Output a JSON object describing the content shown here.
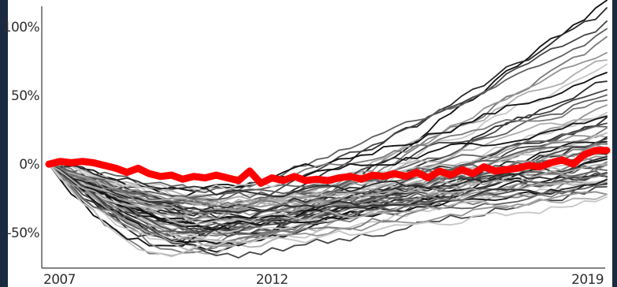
{
  "chart_data": {
    "type": "line",
    "y_unit": "%",
    "x_range": [
      2007,
      2019
    ],
    "ylim": [
      -70,
      115
    ],
    "y_ticks": [
      {
        "value": 100,
        "label": "100%"
      },
      {
        "value": 50,
        "label": "50%"
      },
      {
        "value": 0,
        "label": "0%"
      },
      {
        "value": -50,
        "label": "-50%"
      }
    ],
    "x_ticks": [
      {
        "value": 2007,
        "label": "2007"
      },
      {
        "value": 2012,
        "label": "2012"
      },
      {
        "value": 2019,
        "label": "2019"
      }
    ],
    "highlight_series": {
      "color": "#ff0000",
      "points": [
        [
          2007.0,
          0
        ],
        [
          2007.25,
          2
        ],
        [
          2007.5,
          1
        ],
        [
          2007.75,
          2
        ],
        [
          2008.0,
          1
        ],
        [
          2008.25,
          -1
        ],
        [
          2008.5,
          -3
        ],
        [
          2008.75,
          -6
        ],
        [
          2009.0,
          -3
        ],
        [
          2009.25,
          -7
        ],
        [
          2009.5,
          -9
        ],
        [
          2009.75,
          -8
        ],
        [
          2010.0,
          -11
        ],
        [
          2010.25,
          -9
        ],
        [
          2010.5,
          -10
        ],
        [
          2010.75,
          -8
        ],
        [
          2011.0,
          -10
        ],
        [
          2011.25,
          -12
        ],
        [
          2011.5,
          -5
        ],
        [
          2011.75,
          -14
        ],
        [
          2012.0,
          -10
        ],
        [
          2012.25,
          -12
        ],
        [
          2012.5,
          -9
        ],
        [
          2012.75,
          -12
        ],
        [
          2013.0,
          -11
        ],
        [
          2013.25,
          -12
        ],
        [
          2013.5,
          -10
        ],
        [
          2013.75,
          -9
        ],
        [
          2014.0,
          -11
        ],
        [
          2014.25,
          -8
        ],
        [
          2014.5,
          -9
        ],
        [
          2014.75,
          -7
        ],
        [
          2015.0,
          -9
        ],
        [
          2015.25,
          -6
        ],
        [
          2015.5,
          -10
        ],
        [
          2015.75,
          -5
        ],
        [
          2016.0,
          -8
        ],
        [
          2016.25,
          -4
        ],
        [
          2016.5,
          -7
        ],
        [
          2016.75,
          -2
        ],
        [
          2017.0,
          -5
        ],
        [
          2017.25,
          -4
        ],
        [
          2017.5,
          -3
        ],
        [
          2017.75,
          -1
        ],
        [
          2018.0,
          -2
        ],
        [
          2018.25,
          1
        ],
        [
          2018.5,
          3
        ],
        [
          2018.75,
          0
        ],
        [
          2019.0,
          7
        ],
        [
          2019.25,
          10
        ],
        [
          2019.5,
          10
        ]
      ]
    },
    "background_series_style": {
      "count": 64,
      "colors": [
        "#111111",
        "#2b2b2b",
        "#454545",
        "#5f5f5f",
        "#7a7a7a",
        "#949494",
        "#aeaeae",
        "#c6c6c6"
      ]
    },
    "background_series": [
      {
        "trough": -62,
        "end": 120
      },
      {
        "trough": -35,
        "end": 112
      },
      {
        "trough": -50,
        "end": 103
      },
      {
        "trough": -28,
        "end": 95
      },
      {
        "trough": -55,
        "end": 90
      },
      {
        "trough": -40,
        "end": 85
      },
      {
        "trough": -30,
        "end": 78
      },
      {
        "trough": -58,
        "end": 72
      },
      {
        "trough": -20,
        "end": 65
      },
      {
        "trough": -45,
        "end": 60
      },
      {
        "trough": -33,
        "end": 55
      },
      {
        "trough": -52,
        "end": 50
      },
      {
        "trough": -25,
        "end": 47
      },
      {
        "trough": -60,
        "end": 43
      },
      {
        "trough": -38,
        "end": 40
      },
      {
        "trough": -48,
        "end": 37
      },
      {
        "trough": -22,
        "end": 34
      },
      {
        "trough": -55,
        "end": 32
      },
      {
        "trough": -42,
        "end": 30
      },
      {
        "trough": -30,
        "end": 28
      },
      {
        "trough": -64,
        "end": 26
      },
      {
        "trough": -36,
        "end": 24
      },
      {
        "trough": -46,
        "end": 22
      },
      {
        "trough": -26,
        "end": 20
      },
      {
        "trough": -58,
        "end": 19
      },
      {
        "trough": -40,
        "end": 18
      },
      {
        "trough": -50,
        "end": 16
      },
      {
        "trough": -20,
        "end": 15
      },
      {
        "trough": -44,
        "end": 14
      },
      {
        "trough": -34,
        "end": 13
      },
      {
        "trough": -62,
        "end": 12
      },
      {
        "trough": -28,
        "end": 11
      },
      {
        "trough": -52,
        "end": 10
      },
      {
        "trough": -38,
        "end": 9
      },
      {
        "trough": -47,
        "end": 8
      },
      {
        "trough": -24,
        "end": 7
      },
      {
        "trough": -56,
        "end": 6
      },
      {
        "trough": -32,
        "end": 5
      },
      {
        "trough": -42,
        "end": 4
      },
      {
        "trough": -18,
        "end": 3
      },
      {
        "trough": -60,
        "end": 2
      },
      {
        "trough": -36,
        "end": 1
      },
      {
        "trough": -48,
        "end": 0
      },
      {
        "trough": -26,
        "end": -1
      },
      {
        "trough": -54,
        "end": -2
      },
      {
        "trough": -40,
        "end": -3
      },
      {
        "trough": -30,
        "end": -4
      },
      {
        "trough": -58,
        "end": -5
      },
      {
        "trough": -44,
        "end": -6
      },
      {
        "trough": -22,
        "end": -7
      },
      {
        "trough": -50,
        "end": -8
      },
      {
        "trough": -34,
        "end": -9
      },
      {
        "trough": -62,
        "end": -10
      },
      {
        "trough": -40,
        "end": -11
      },
      {
        "trough": -28,
        "end": -12
      },
      {
        "trough": -53,
        "end": -13
      },
      {
        "trough": -45,
        "end": -14
      },
      {
        "trough": -36,
        "end": -15
      },
      {
        "trough": -66,
        "end": -16
      },
      {
        "trough": -48,
        "end": -18
      },
      {
        "trough": -30,
        "end": -20
      },
      {
        "trough": -57,
        "end": -22
      },
      {
        "trough": -42,
        "end": -24
      },
      {
        "trough": -64,
        "end": -26
      }
    ],
    "grid": false
  }
}
